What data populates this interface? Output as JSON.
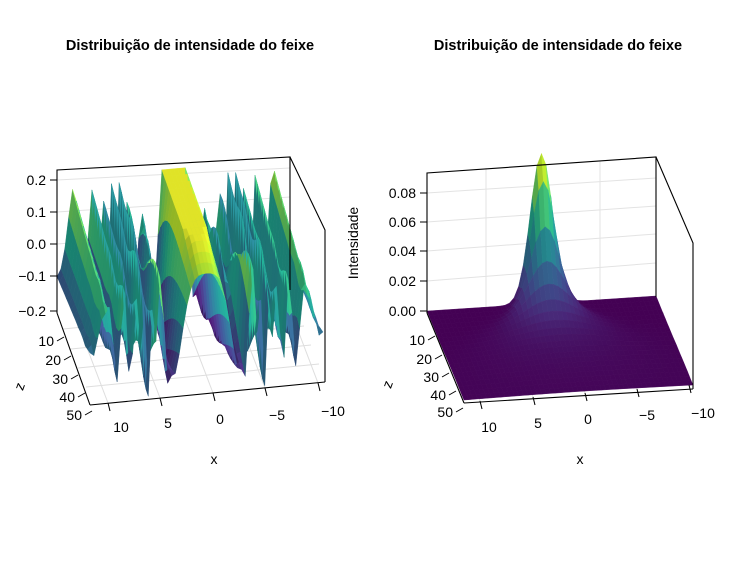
{
  "chart_data": [
    {
      "type": "surface",
      "title": "Distribuição de intensidade do feixe",
      "xlabel": "x",
      "ylabel": "z",
      "zlabel": "",
      "x_ticks": [
        "10",
        "5",
        "0",
        "−5",
        "−10"
      ],
      "y_ticks": [
        "10",
        "20",
        "30",
        "40",
        "50"
      ],
      "z_ticks": [
        "0.2",
        "0.1",
        "0.0",
        "−0.1",
        "−0.2"
      ],
      "x_range": [
        12.5,
        -12.5
      ],
      "y_range": [
        0,
        52
      ],
      "z_range": [
        -0.22,
        0.22
      ],
      "colormap": "viridis",
      "peak_value": 0.2,
      "description_values": "real part of beam field, central lobe clipped at 0.2, oscillating fringes toward |x|>5"
    },
    {
      "type": "surface",
      "title": "Distribuição de intensidade do feixe",
      "xlabel": "x",
      "ylabel": "z",
      "zlabel": "Intensidade",
      "x_ticks": [
        "10",
        "5",
        "0",
        "−5",
        "−10"
      ],
      "y_ticks": [
        "10",
        "20",
        "30",
        "40",
        "50"
      ],
      "z_ticks": [
        "0.08",
        "0.06",
        "0.04",
        "0.02",
        "0.00"
      ],
      "x_range": [
        12.5,
        -12.5
      ],
      "y_range": [
        0,
        52
      ],
      "z_range": [
        0,
        0.09
      ],
      "colormap": "viridis",
      "peak_value": 0.09
    }
  ],
  "colors": {
    "viridis_low": "#440154",
    "viridis_mid": "#21918c",
    "viridis_high": "#fde725",
    "grid": "#dddddd",
    "axis": "#000000"
  }
}
